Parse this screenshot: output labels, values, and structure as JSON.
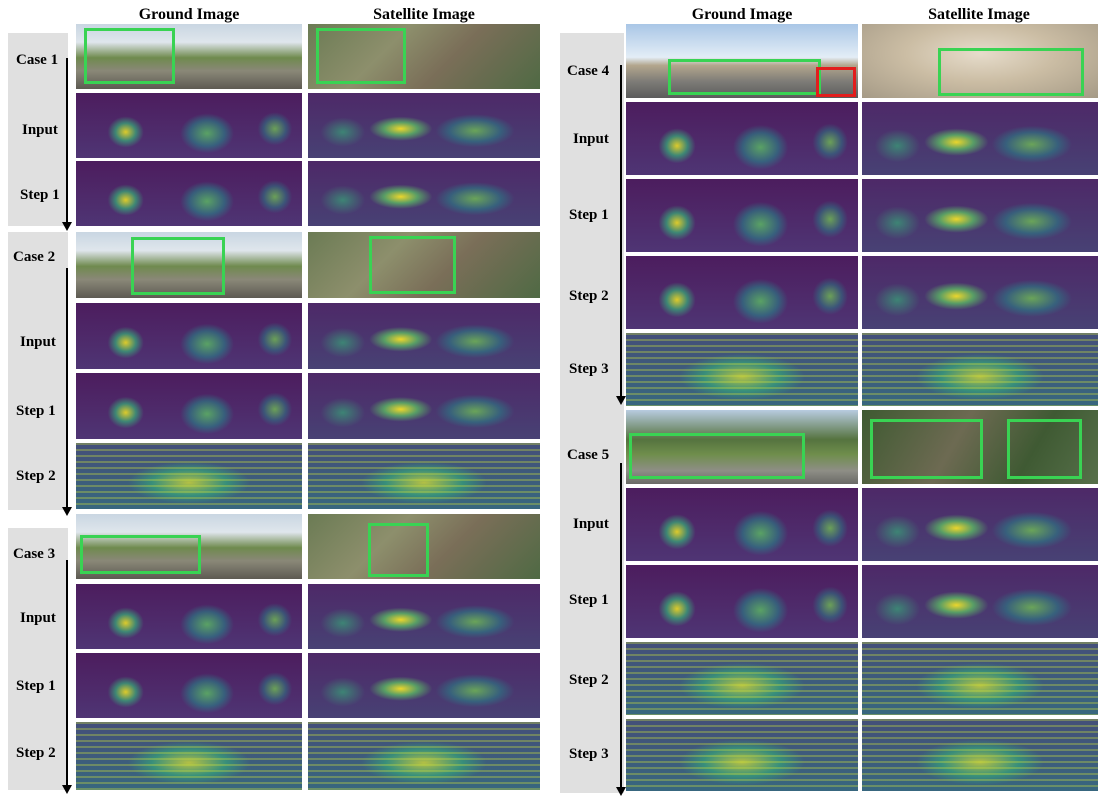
{
  "headers": {
    "ground": "Ground Image",
    "satellite": "Satellite Image"
  },
  "cases": [
    {
      "label": "Case 1",
      "rows": [
        "Input",
        "Step 1"
      ]
    },
    {
      "label": "Case 2",
      "rows": [
        "Input",
        "Step 1",
        "Step 2"
      ]
    },
    {
      "label": "Case 3",
      "rows": [
        "Input",
        "Step 1",
        "Step 2"
      ]
    },
    {
      "label": "Case 4",
      "rows": [
        "Input",
        "Step 1",
        "Step 2",
        "Step 3"
      ]
    },
    {
      "label": "Case 5",
      "rows": [
        "Input",
        "Step 1",
        "Step 2",
        "Step 3"
      ]
    }
  ],
  "colors": {
    "highlight_box": "#39d353",
    "highlight_box_alt": "#e21d1d",
    "label_band": "#e0e0e0"
  }
}
